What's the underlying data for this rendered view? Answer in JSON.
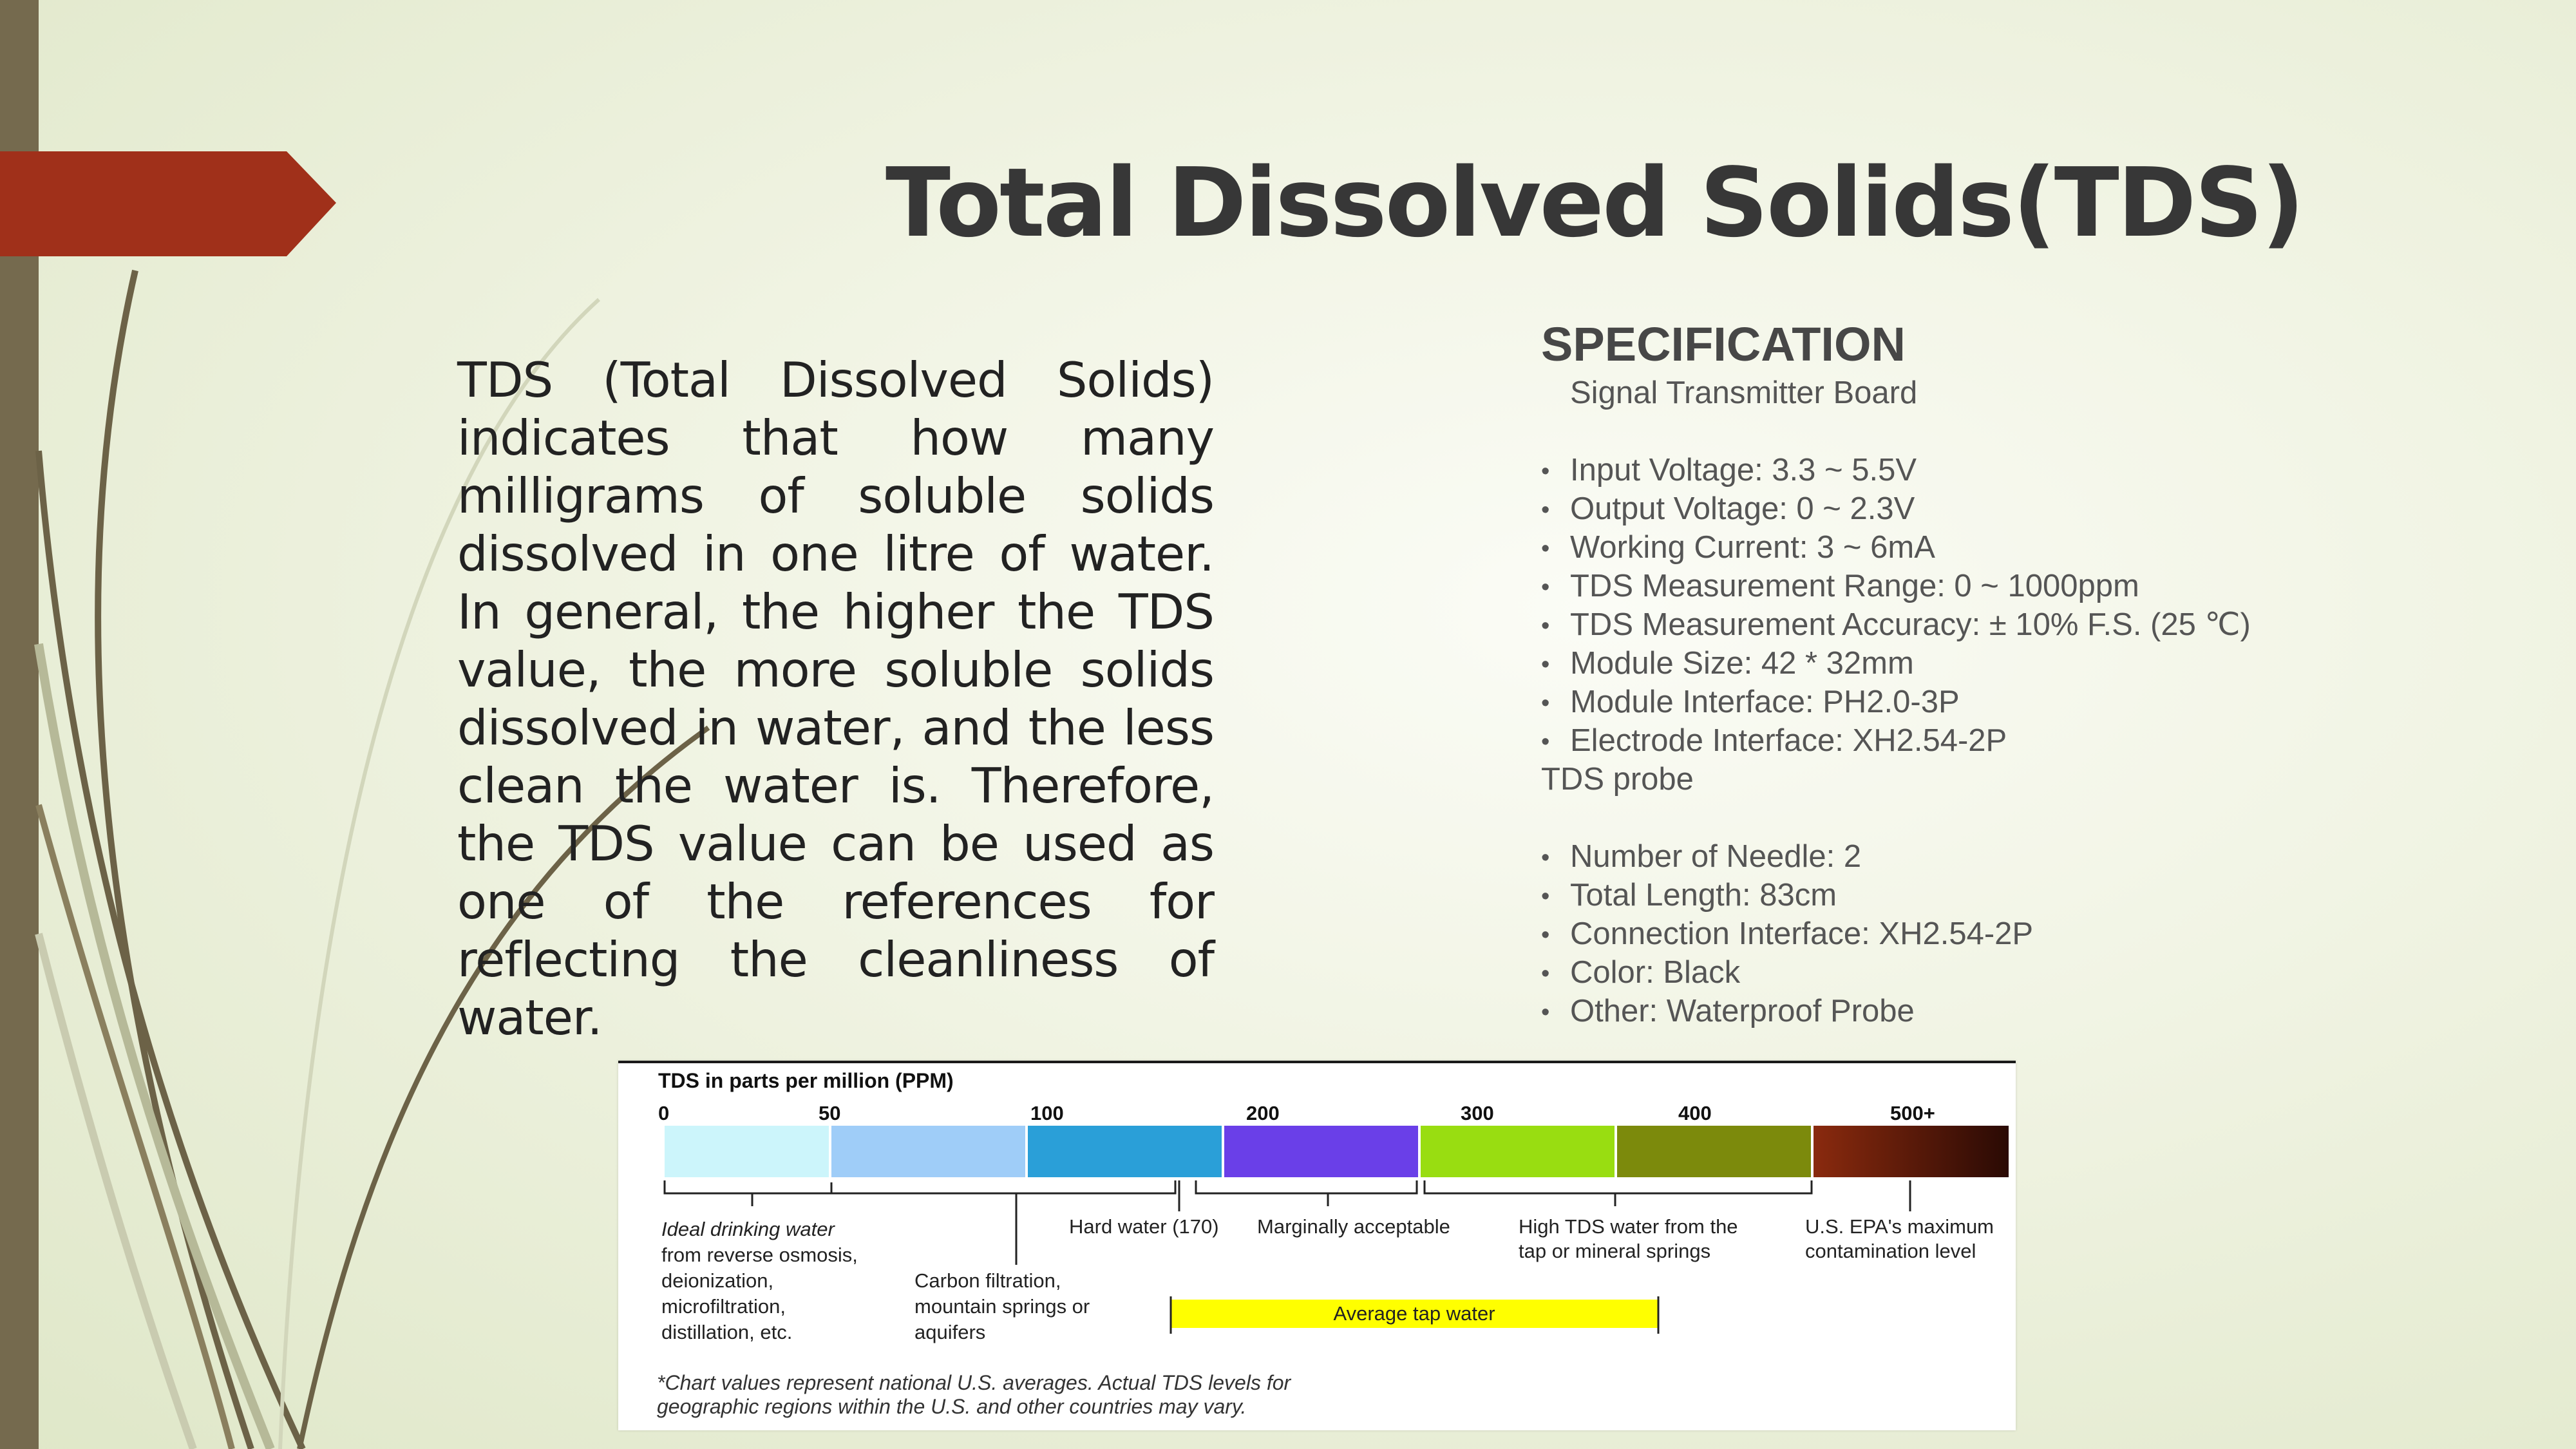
{
  "slide": {
    "title": "Total Dissolved Solids(TDS)",
    "description": "TDS (Total Dissolved Solids) indicates that how many milligrams of soluble solids dissolved in one litre of water. In general, the higher the TDS value, the more soluble solids dissolved in water, and the less clean the water is. Therefore, the TDS value can be used as one of the references for reflecting the cleanliness of water."
  },
  "spec": {
    "heading": "SPECIFICATION",
    "board_label": "Signal Transmitter Board",
    "board_items": [
      "Input Voltage: 3.3 ~ 5.5V",
      "Output Voltage: 0 ~ 2.3V",
      "Working Current: 3 ~ 6mA",
      "TDS Measurement Range: 0 ~ 1000ppm",
      "TDS Measurement Accuracy: ± 10% F.S. (25 ℃)",
      "Module Size: 42 * 32mm",
      "Module Interface: PH2.0-3P",
      "Electrode Interface: XH2.54-2P"
    ],
    "probe_label": "TDS probe",
    "probe_items": [
      "Number of Needle: 2",
      "Total Length: 83cm",
      "Connection Interface: XH2.54-2P",
      "Color: Black",
      "Other: Waterproof Probe"
    ]
  },
  "figure": {
    "heading": "TDS in parts per million (PPM)",
    "ticks": [
      "0",
      "50",
      "100",
      "200",
      "300",
      "400",
      "500+"
    ],
    "segments": [
      {
        "from": "0",
        "to": "50",
        "color": "#ccf5fb"
      },
      {
        "from": "50",
        "to": "100",
        "color": "#9fcdf8"
      },
      {
        "from": "100",
        "to": "200",
        "color": "#2a9fd8"
      },
      {
        "from": "200",
        "to": "300",
        "color": "#6a3fe8"
      },
      {
        "from": "300",
        "to": "400",
        "color": "#99dd11"
      },
      {
        "from": "400",
        "to": "500",
        "color": "#7c8a0c"
      },
      {
        "from": "500",
        "to": "500+",
        "color": "#8a2a0e"
      }
    ],
    "notes": {
      "ideal": [
        "Ideal drinking water",
        "from reverse osmosis,",
        "deionization,",
        "microfiltration,",
        "distillation, etc."
      ],
      "carbon": [
        "Carbon filtration,",
        "mountain springs or",
        "aquifers"
      ],
      "hard": "Hard water (170)",
      "marginal": "Marginally acceptable",
      "high": [
        "High TDS water from the",
        "tap or mineral springs"
      ],
      "epa": [
        "U.S. EPA's maximum",
        "contamination level"
      ]
    },
    "tap_label": "Average tap water",
    "tap_color": "#ffff00",
    "footnote": [
      "*Chart values  represent  national  U.S.  averages.    Actual  TDS  levels  for",
      "geographic regions within the U.S. and other countries may vary."
    ]
  },
  "theme": {
    "accent_red": "#a0301a",
    "left_bar": "#7a6e52"
  }
}
